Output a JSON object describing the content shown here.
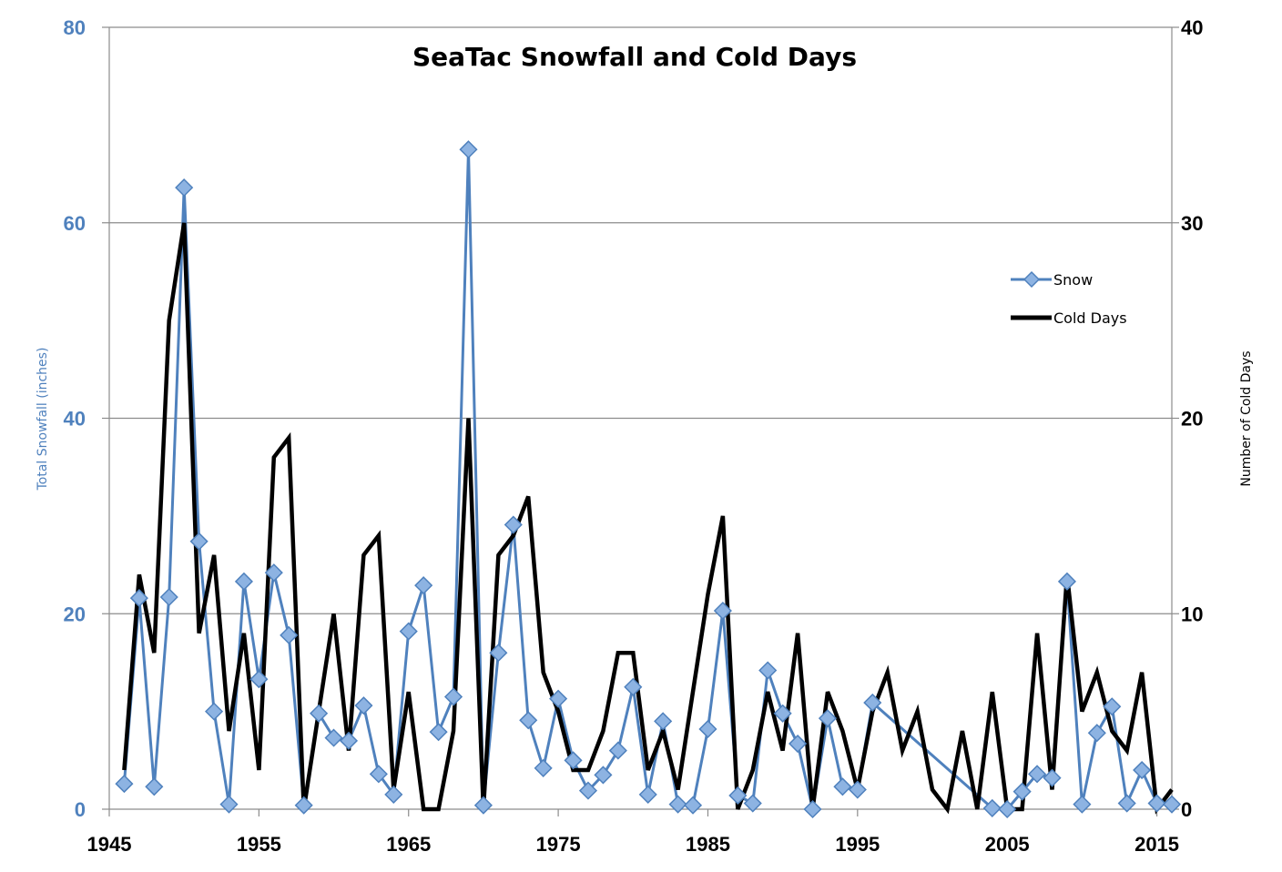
{
  "chart_data": {
    "type": "line",
    "title": "SeaTac Snowfall and Cold Days",
    "ylabel_left": "Total Snowfall (inches)",
    "ylabel_right": "Number of Cold Days",
    "xlim": [
      1945,
      2016
    ],
    "ylim_left": [
      0,
      80
    ],
    "ylim_right": [
      0,
      40
    ],
    "x_ticks": [
      1945,
      1955,
      1965,
      1975,
      1985,
      1995,
      2005,
      2015
    ],
    "y_ticks_left": [
      0,
      20,
      40,
      60,
      80
    ],
    "y_ticks_right": [
      0,
      10,
      20,
      30,
      40
    ],
    "grid": "horizontal",
    "legend_position": "right",
    "colors": {
      "snow": "#4f81bd",
      "snow_marker_fill": "#8db3e2",
      "cold": "#000000",
      "grid": "#8c8c8c"
    },
    "series": [
      {
        "name": "Snow",
        "axis": "left",
        "marker": "diamond",
        "points": [
          [
            1946,
            2.6
          ],
          [
            1947,
            21.6
          ],
          [
            1948,
            2.3
          ],
          [
            1949,
            21.7
          ],
          [
            1950,
            63.6
          ],
          [
            1951,
            27.4
          ],
          [
            1952,
            10.0
          ],
          [
            1953,
            0.5
          ],
          [
            1954,
            23.3
          ],
          [
            1955,
            13.3
          ],
          [
            1956,
            24.2
          ],
          [
            1957,
            17.8
          ],
          [
            1958,
            0.4
          ],
          [
            1959,
            9.8
          ],
          [
            1960,
            7.3
          ],
          [
            1961,
            7.0
          ],
          [
            1962,
            10.6
          ],
          [
            1963,
            3.6
          ],
          [
            1964,
            1.5
          ],
          [
            1965,
            18.2
          ],
          [
            1966,
            22.9
          ],
          [
            1967,
            7.9
          ],
          [
            1968,
            11.5
          ],
          [
            1969,
            67.5
          ],
          [
            1970,
            0.4
          ],
          [
            1971,
            16.0
          ],
          [
            1972,
            29.1
          ],
          [
            1973,
            9.1
          ],
          [
            1974,
            4.2
          ],
          [
            1975,
            11.3
          ],
          [
            1976,
            5.0
          ],
          [
            1977,
            1.9
          ],
          [
            1978,
            3.5
          ],
          [
            1979,
            6.0
          ],
          [
            1980,
            12.5
          ],
          [
            1981,
            1.5
          ],
          [
            1982,
            9.0
          ],
          [
            1983,
            0.5
          ],
          [
            1984,
            0.4
          ],
          [
            1985,
            8.2
          ],
          [
            1986,
            20.3
          ],
          [
            1987,
            1.4
          ],
          [
            1988,
            0.6
          ],
          [
            1989,
            14.2
          ],
          [
            1990,
            9.8
          ],
          [
            1991,
            6.7
          ],
          [
            1992,
            0.0
          ],
          [
            1993,
            9.3
          ],
          [
            1994,
            2.3
          ],
          [
            1995,
            2.0
          ],
          [
            1996,
            10.9
          ],
          [
            2004,
            0.1
          ],
          [
            2005,
            0.0
          ],
          [
            2006,
            1.8
          ],
          [
            2007,
            3.6
          ],
          [
            2008,
            3.2
          ],
          [
            2009,
            23.3
          ],
          [
            2010,
            0.5
          ],
          [
            2011,
            7.8
          ],
          [
            2012,
            10.5
          ],
          [
            2013,
            0.6
          ],
          [
            2014,
            4.0
          ],
          [
            2015,
            0.6
          ],
          [
            2016,
            0.5
          ]
        ]
      },
      {
        "name": "Cold Days",
        "axis": "right",
        "marker": "none",
        "points": [
          [
            1946,
            2
          ],
          [
            1947,
            12
          ],
          [
            1948,
            8
          ],
          [
            1949,
            25
          ],
          [
            1950,
            30
          ],
          [
            1951,
            9
          ],
          [
            1952,
            13
          ],
          [
            1953,
            4
          ],
          [
            1954,
            9
          ],
          [
            1955,
            2
          ],
          [
            1956,
            18
          ],
          [
            1957,
            19
          ],
          [
            1958,
            0
          ],
          [
            1959,
            5
          ],
          [
            1960,
            10
          ],
          [
            1961,
            3
          ],
          [
            1962,
            13
          ],
          [
            1963,
            14
          ],
          [
            1964,
            1
          ],
          [
            1965,
            6
          ],
          [
            1966,
            0
          ],
          [
            1967,
            0
          ],
          [
            1968,
            4
          ],
          [
            1969,
            20
          ],
          [
            1970,
            0
          ],
          [
            1971,
            13
          ],
          [
            1972,
            14
          ],
          [
            1973,
            16
          ],
          [
            1974,
            7
          ],
          [
            1975,
            5
          ],
          [
            1976,
            2
          ],
          [
            1977,
            2
          ],
          [
            1978,
            4
          ],
          [
            1979,
            8
          ],
          [
            1980,
            8
          ],
          [
            1981,
            2
          ],
          [
            1982,
            4
          ],
          [
            1983,
            1
          ],
          [
            1984,
            6
          ],
          [
            1985,
            11
          ],
          [
            1986,
            15
          ],
          [
            1987,
            0
          ],
          [
            1988,
            2
          ],
          [
            1989,
            6
          ],
          [
            1990,
            3
          ],
          [
            1991,
            9
          ],
          [
            1992,
            0
          ],
          [
            1993,
            6
          ],
          [
            1994,
            4
          ],
          [
            1995,
            1
          ],
          [
            1996,
            5
          ],
          [
            1997,
            7
          ],
          [
            1998,
            3
          ],
          [
            1999,
            5
          ],
          [
            2000,
            1
          ],
          [
            2001,
            0
          ],
          [
            2002,
            4
          ],
          [
            2003,
            0
          ],
          [
            2004,
            6
          ],
          [
            2005,
            0
          ],
          [
            2006,
            0
          ],
          [
            2007,
            9
          ],
          [
            2008,
            1
          ],
          [
            2009,
            12
          ],
          [
            2010,
            5
          ],
          [
            2011,
            7
          ],
          [
            2012,
            4
          ],
          [
            2013,
            3
          ],
          [
            2014,
            7
          ],
          [
            2015,
            0
          ],
          [
            2016,
            1
          ]
        ]
      }
    ]
  }
}
